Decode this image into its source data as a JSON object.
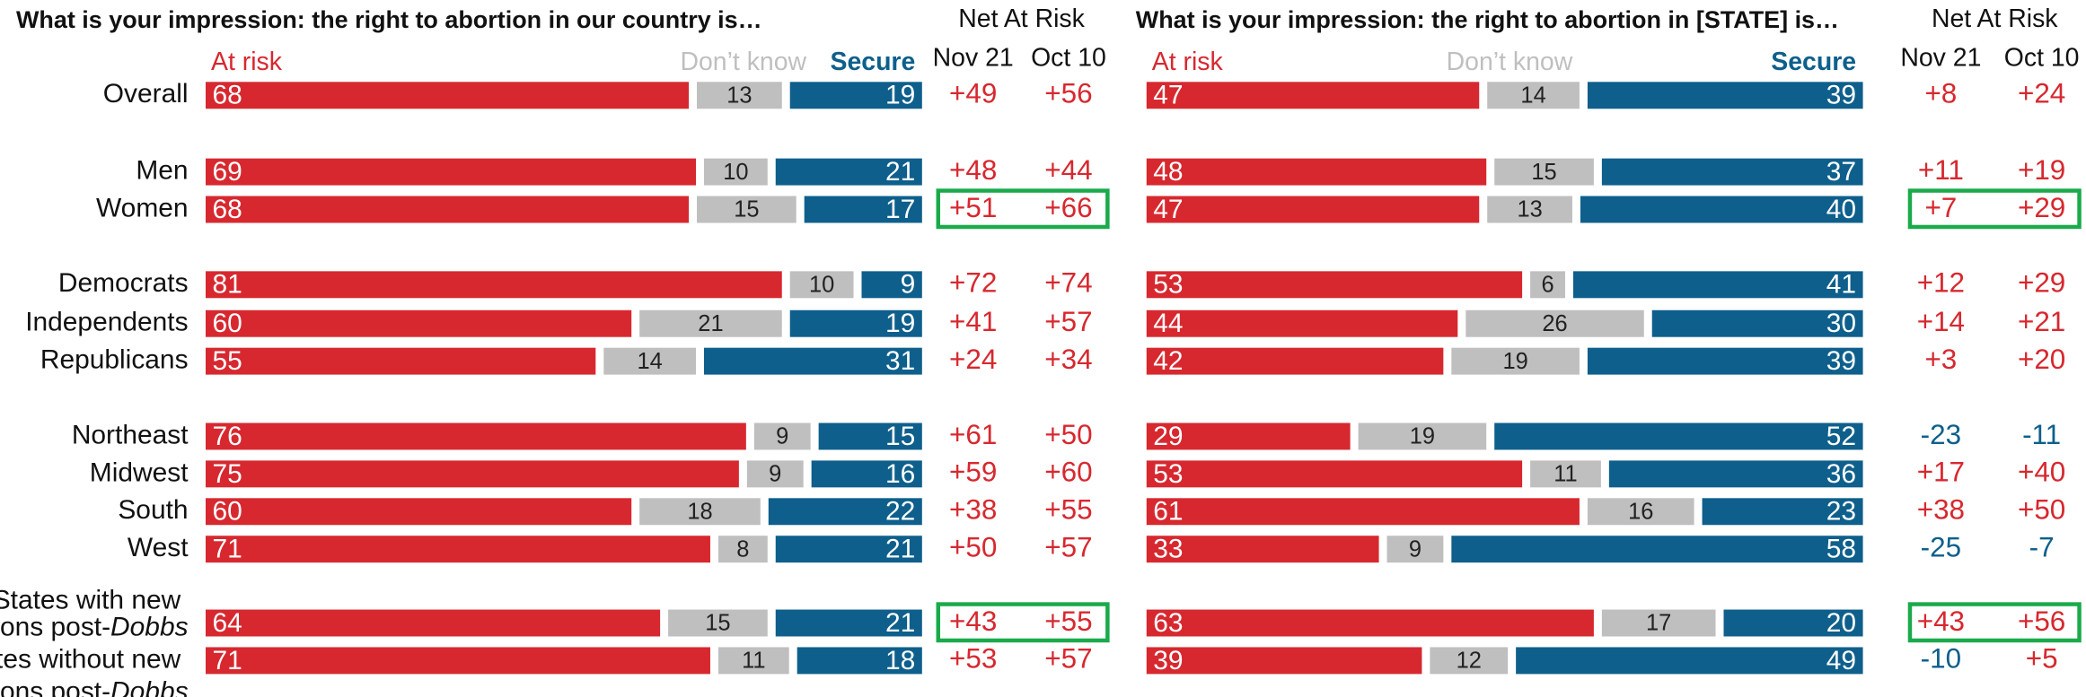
{
  "chart_data": [
    {
      "type": "bar",
      "orientation": "horizontal",
      "stacked": true,
      "title": "What is your impression: the right to abortion in our country is…",
      "categories": [
        "Overall",
        "Men",
        "Women",
        "Democrats",
        "Independents",
        "Republicans",
        "Northeast",
        "Midwest",
        "South",
        "West",
        "*States with new restrictions post-Dobbs",
        "States without new restrictions post-Dobbs"
      ],
      "xlim": [
        0,
        100
      ],
      "series": [
        {
          "name": "At risk",
          "color": "#d7282f",
          "values": [
            68,
            69,
            68,
            81,
            60,
            55,
            76,
            75,
            60,
            71,
            64,
            71
          ]
        },
        {
          "name": "Don’t know",
          "color": "#bfbfbf",
          "values": [
            13,
            10,
            15,
            10,
            21,
            14,
            9,
            9,
            18,
            8,
            15,
            11
          ]
        },
        {
          "name": "Secure",
          "color": "#0e5f8c",
          "values": [
            19,
            21,
            17,
            9,
            19,
            31,
            15,
            16,
            22,
            21,
            21,
            18
          ]
        }
      ],
      "net": {
        "title": "Net At Risk",
        "columns": [
          {
            "name": "Nov 21",
            "values": [
              49,
              48,
              51,
              72,
              41,
              24,
              61,
              59,
              38,
              50,
              43,
              53
            ],
            "value_labels": [
              "+49",
              "+48",
              "+51",
              "+72",
              "+41",
              "+24",
              "+61",
              "+59",
              "+38",
              "+50",
              "+43",
              "+53"
            ]
          },
          {
            "name": "Oct 10",
            "values": [
              56,
              44,
              66,
              74,
              57,
              34,
              50,
              60,
              55,
              57,
              55,
              57
            ],
            "value_labels": [
              "+56",
              "+44",
              "+66",
              "+74",
              "+57",
              "+34",
              "+50",
              "+60",
              "+55",
              "+57",
              "+55",
              "+57"
            ]
          }
        ]
      },
      "highlight": [
        2,
        10
      ],
      "highlight_color": "#1aaa4b",
      "positive_color": "#d7282f",
      "negative_color": "#0e5f8c"
    },
    {
      "type": "bar",
      "orientation": "horizontal",
      "stacked": true,
      "title": "What is your impression: the right to abortion in [STATE] is…",
      "xlim": [
        0,
        100
      ],
      "series": [
        {
          "name": "At risk",
          "color": "#d7282f",
          "values": [
            47,
            48,
            47,
            53,
            44,
            42,
            29,
            53,
            61,
            33,
            63,
            39
          ]
        },
        {
          "name": "Don’t know",
          "color": "#bfbfbf",
          "values": [
            14,
            15,
            13,
            6,
            26,
            19,
            19,
            11,
            16,
            9,
            17,
            12
          ]
        },
        {
          "name": "Secure",
          "color": "#0e5f8c",
          "values": [
            39,
            37,
            40,
            41,
            30,
            39,
            52,
            36,
            23,
            58,
            20,
            49
          ]
        }
      ],
      "net": {
        "title": "Net At Risk",
        "columns": [
          {
            "name": "Nov 21",
            "values": [
              8,
              11,
              7,
              12,
              14,
              3,
              -23,
              17,
              38,
              -25,
              43,
              -10
            ],
            "value_labels": [
              "+8",
              "+11",
              "+7",
              "+12",
              "+14",
              "+3",
              "-23",
              "+17",
              "+38",
              "-25",
              "+43",
              "-10"
            ]
          },
          {
            "name": "Oct 10",
            "values": [
              24,
              19,
              29,
              29,
              21,
              20,
              -11,
              40,
              50,
              -7,
              56,
              5
            ],
            "value_labels": [
              "+24",
              "+19",
              "+29",
              "+29",
              "+21",
              "+20",
              "-11",
              "+40",
              "+50",
              "-7",
              "+56",
              "+5"
            ]
          }
        ]
      },
      "highlight": [
        2,
        10
      ],
      "highlight_color": "#1aaa4b",
      "positive_color": "#d7282f",
      "negative_color": "#0e5f8c"
    }
  ]
}
